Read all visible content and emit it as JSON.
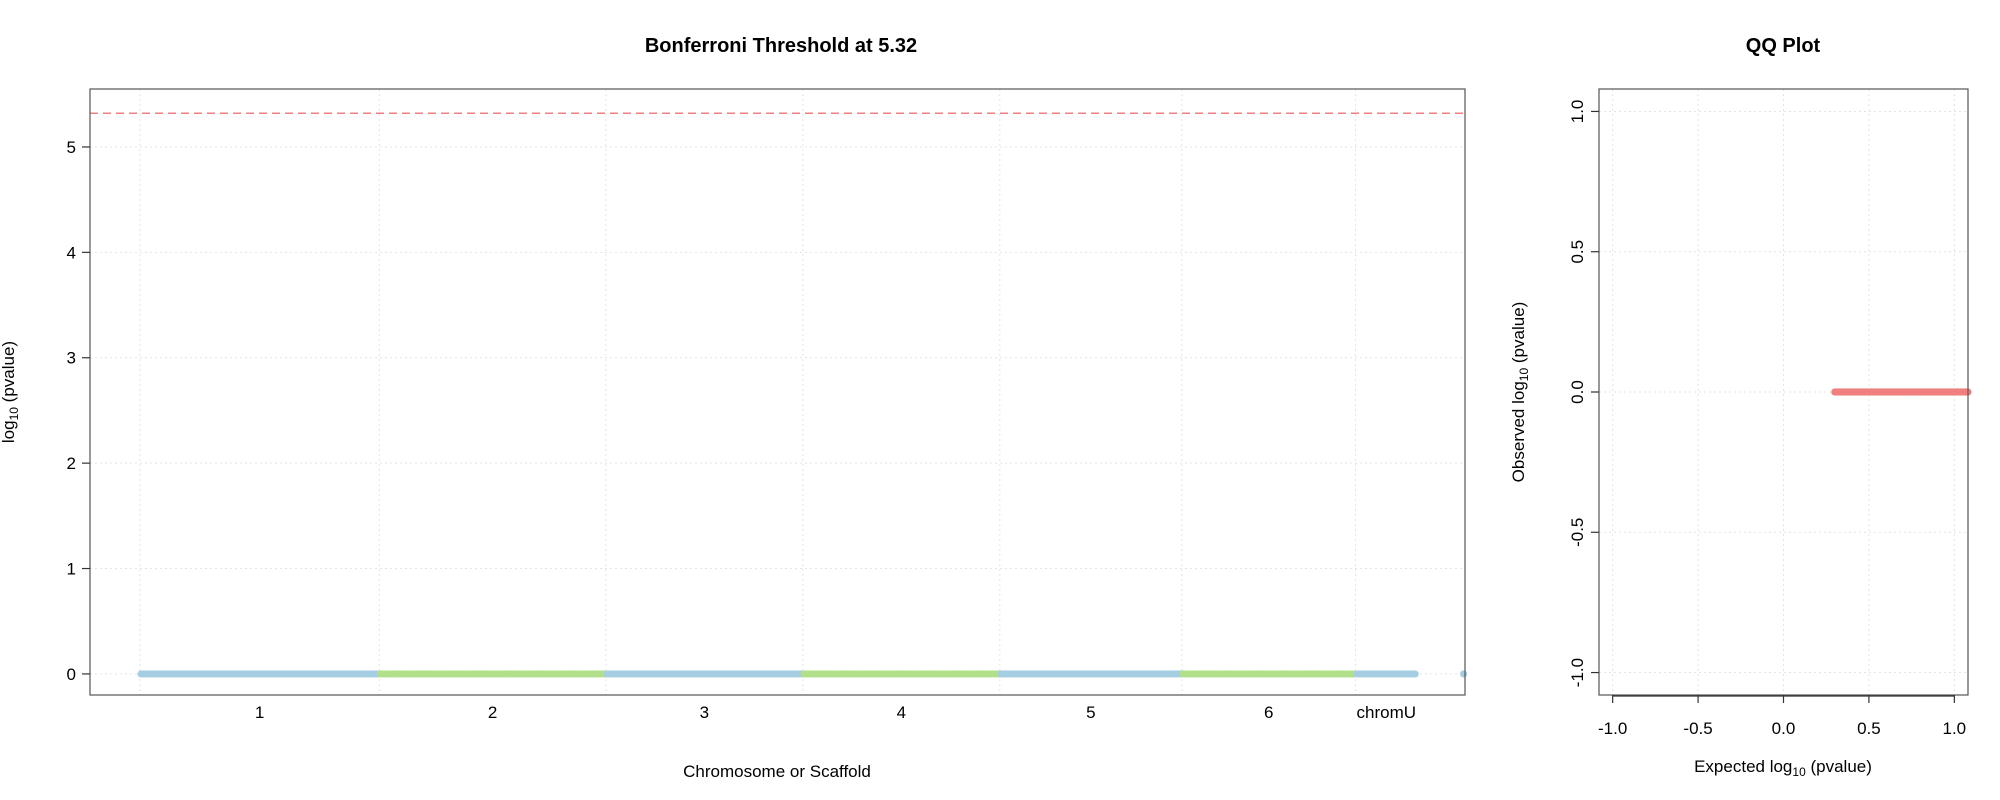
{
  "chart_data": [
    {
      "type": "scatter",
      "title": "Bonferroni Threshold at 5.32",
      "xlabel": "Chromosome or Scaffold",
      "ylabel": {
        "prefix": "log",
        "sub": "10",
        "suffix": " (pvalue)"
      },
      "ylim": [
        -0.2,
        5.55
      ],
      "yticks": [
        "0",
        "1",
        "2",
        "3",
        "4",
        "5"
      ],
      "threshold": 5.32,
      "grid": true,
      "legend": "none",
      "chromosomes": [
        {
          "label": "1",
          "range": [
            0,
            1.13
          ],
          "color": "#a6cee3",
          "y": 0
        },
        {
          "label": "2",
          "range": [
            1.13,
            2.2
          ],
          "color": "#b2df8a",
          "y": 0
        },
        {
          "label": "3",
          "range": [
            2.2,
            3.13
          ],
          "color": "#a6cee3",
          "y": 0
        },
        {
          "label": "4",
          "range": [
            3.13,
            4.06
          ],
          "color": "#b2df8a",
          "y": 0
        },
        {
          "label": "5",
          "range": [
            4.06,
            4.92
          ],
          "color": "#a6cee3",
          "y": 0
        },
        {
          "label": "6",
          "range": [
            4.92,
            5.74
          ],
          "color": "#b2df8a",
          "y": 0
        },
        {
          "label": "chromU",
          "range": [
            5.74,
            6.03
          ],
          "color": "#a6cee3",
          "y": 0
        }
      ],
      "extra_point": {
        "x": 6.25,
        "y": 0,
        "color": "#a6cee3"
      },
      "threshold_color": "#f08080"
    },
    {
      "type": "scatter",
      "title": "QQ Plot",
      "xlabel": {
        "prefix": "Expected  log",
        "sub": "10",
        "suffix": " (pvalue)"
      },
      "ylabel": {
        "prefix": "Observed  log",
        "sub": "10",
        "suffix": " (pvalue)"
      },
      "xlim": [
        -1.08,
        1.08
      ],
      "ylim": [
        -1.08,
        1.08
      ],
      "xticks": [
        "-1.0",
        "-0.5",
        "0.0",
        "0.5",
        "1.0"
      ],
      "yticks": [
        "-1.0",
        "-0.5",
        "0.0",
        "0.5",
        "1.0"
      ],
      "grid": true,
      "legend": "none",
      "points": {
        "x_from": 0.3,
        "x_to": 1.08,
        "y": 0,
        "color": "#f08080"
      }
    }
  ]
}
